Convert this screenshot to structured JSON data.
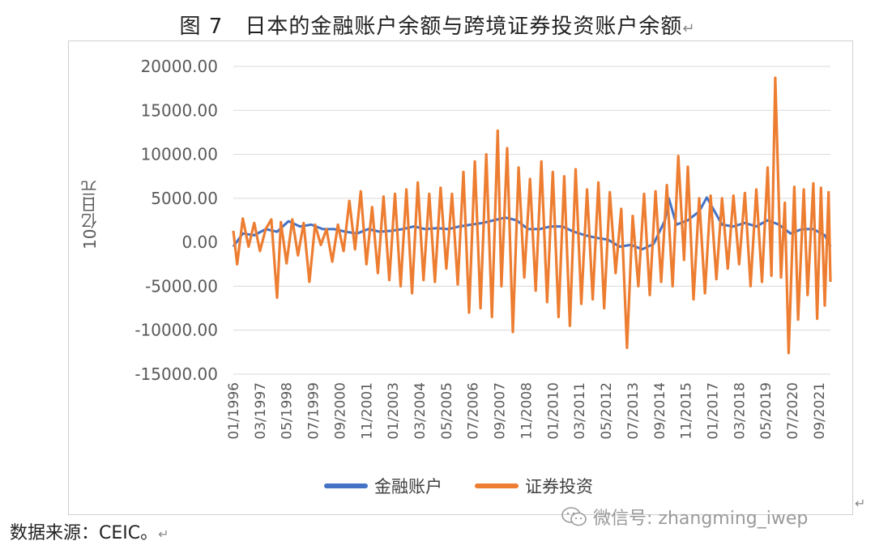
{
  "title": "图 7　日本的金融账户余额与跨境证券投资账户余额",
  "title_mark": "↵",
  "source_text": "数据来源：CEIC。",
  "source_mark": "↵",
  "watermark": "微信号: zhangming_iwep",
  "watermark_icon": "wechat-icon",
  "corner_mark": "↵",
  "colors": {
    "financial": "#4472C4",
    "securities": "#ED7D31",
    "grid": "#d9d9d9",
    "axis_text": "#595959"
  },
  "chart_data": {
    "type": "line",
    "title": "图 7　日本的金融账户余额与跨境证券投资账户余额",
    "ylabel": "10亿日元",
    "xlabel": "",
    "ylim": [
      -15000,
      20000
    ],
    "yticks": [
      20000,
      15000,
      10000,
      5000,
      0,
      -5000,
      -10000,
      -15000
    ],
    "ytick_labels": [
      "20000.00",
      "15000.00",
      "10000.00",
      "5000.00",
      "0.00",
      "-5000.00",
      "-10000.00",
      "-15000.00"
    ],
    "xticks": [
      "01/1996",
      "03/1997",
      "05/1998",
      "07/1999",
      "09/2000",
      "11/2001",
      "01/2003",
      "03/2004",
      "05/2005",
      "07/2006",
      "09/2007",
      "11/2008",
      "01/2010",
      "03/2011",
      "05/2012",
      "07/2013",
      "09/2014",
      "11/2015",
      "01/2017",
      "03/2018",
      "05/2019",
      "07/2020",
      "09/2021"
    ],
    "x_start": "1996-01",
    "x_end": "2022-03",
    "frequency": "monthly",
    "grid": true,
    "legend_position": "bottom",
    "series": [
      {
        "name": "金融账户",
        "color": "#4472C4",
        "anchors": [
          [
            "1996-01",
            -500
          ],
          [
            "1996-06",
            1000
          ],
          [
            "1996-12",
            800
          ],
          [
            "1997-06",
            1500
          ],
          [
            "1997-12",
            1200
          ],
          [
            "1998-06",
            2400
          ],
          [
            "1998-12",
            1800
          ],
          [
            "1999-06",
            2000
          ],
          [
            "1999-12",
            1500
          ],
          [
            "2000-06",
            1500
          ],
          [
            "2000-12",
            1200
          ],
          [
            "2001-06",
            1000
          ],
          [
            "2001-12",
            1500
          ],
          [
            "2002-06",
            1200
          ],
          [
            "2002-12",
            1300
          ],
          [
            "2003-06",
            1500
          ],
          [
            "2003-12",
            1800
          ],
          [
            "2004-06",
            1500
          ],
          [
            "2004-12",
            1600
          ],
          [
            "2005-06",
            1500
          ],
          [
            "2005-12",
            1800
          ],
          [
            "2006-06",
            2000
          ],
          [
            "2006-12",
            2200
          ],
          [
            "2007-06",
            2500
          ],
          [
            "2007-12",
            2800
          ],
          [
            "2008-06",
            2500
          ],
          [
            "2008-12",
            1500
          ],
          [
            "2009-06",
            1500
          ],
          [
            "2009-12",
            1800
          ],
          [
            "2010-06",
            1800
          ],
          [
            "2010-12",
            1200
          ],
          [
            "2011-06",
            800
          ],
          [
            "2011-12",
            500
          ],
          [
            "2012-06",
            300
          ],
          [
            "2012-12",
            -500
          ],
          [
            "2013-06",
            -300
          ],
          [
            "2013-12",
            -800
          ],
          [
            "2014-06",
            -200
          ],
          [
            "2014-12",
            2500
          ],
          [
            "2015-02",
            5000
          ],
          [
            "2015-06",
            2000
          ],
          [
            "2015-12",
            2500
          ],
          [
            "2016-06",
            3500
          ],
          [
            "2016-10",
            5100
          ],
          [
            "2017-06",
            2000
          ],
          [
            "2017-12",
            1800
          ],
          [
            "2018-06",
            2200
          ],
          [
            "2018-12",
            1800
          ],
          [
            "2019-06",
            2500
          ],
          [
            "2019-12",
            2000
          ],
          [
            "2020-06",
            1000
          ],
          [
            "2020-12",
            1500
          ],
          [
            "2021-06",
            1500
          ],
          [
            "2021-12",
            800
          ],
          [
            "2022-03",
            -500
          ]
        ]
      },
      {
        "name": "证券投资",
        "color": "#ED7D31",
        "anchors": [
          [
            "1996-01",
            1300
          ],
          [
            "1996-03",
            -2500
          ],
          [
            "1996-06",
            2700
          ],
          [
            "1996-09",
            -500
          ],
          [
            "1996-12",
            2200
          ],
          [
            "1997-03",
            -1000
          ],
          [
            "1997-06",
            1500
          ],
          [
            "1997-09",
            2600
          ],
          [
            "1997-12",
            -6300
          ],
          [
            "1998-02",
            2300
          ],
          [
            "1998-05",
            -2400
          ],
          [
            "1998-08",
            2600
          ],
          [
            "1998-11",
            -1500
          ],
          [
            "1999-02",
            2200
          ],
          [
            "1999-05",
            -4500
          ],
          [
            "1999-08",
            2000
          ],
          [
            "1999-11",
            -300
          ],
          [
            "2000-02",
            1500
          ],
          [
            "2000-05",
            -2200
          ],
          [
            "2000-08",
            2000
          ],
          [
            "2000-11",
            -1000
          ],
          [
            "2001-02",
            4700
          ],
          [
            "2001-05",
            -800
          ],
          [
            "2001-08",
            5800
          ],
          [
            "2001-11",
            -2500
          ],
          [
            "2002-02",
            4000
          ],
          [
            "2002-05",
            -3500
          ],
          [
            "2002-08",
            5200
          ],
          [
            "2002-11",
            -4300
          ],
          [
            "2003-02",
            5500
          ],
          [
            "2003-05",
            -5000
          ],
          [
            "2003-08",
            6000
          ],
          [
            "2003-11",
            -5800
          ],
          [
            "2004-02",
            6800
          ],
          [
            "2004-05",
            -4300
          ],
          [
            "2004-08",
            5500
          ],
          [
            "2004-11",
            -4500
          ],
          [
            "2005-02",
            6200
          ],
          [
            "2005-05",
            -3000
          ],
          [
            "2005-08",
            5500
          ],
          [
            "2005-11",
            -4800
          ],
          [
            "2006-02",
            8000
          ],
          [
            "2006-05",
            -8000
          ],
          [
            "2006-08",
            9200
          ],
          [
            "2006-11",
            -7500
          ],
          [
            "2007-02",
            10000
          ],
          [
            "2007-05",
            -8500
          ],
          [
            "2007-08",
            12700
          ],
          [
            "2007-10",
            -5000
          ],
          [
            "2008-01",
            10700
          ],
          [
            "2008-04",
            -10200
          ],
          [
            "2008-07",
            8500
          ],
          [
            "2008-10",
            -4000
          ],
          [
            "2009-01",
            7200
          ],
          [
            "2009-04",
            -5500
          ],
          [
            "2009-07",
            9200
          ],
          [
            "2009-10",
            -6800
          ],
          [
            "2010-01",
            8000
          ],
          [
            "2010-04",
            -8500
          ],
          [
            "2010-07",
            7500
          ],
          [
            "2010-10",
            -9500
          ],
          [
            "2011-01",
            8300
          ],
          [
            "2011-04",
            -7000
          ],
          [
            "2011-07",
            6000
          ],
          [
            "2011-10",
            -6500
          ],
          [
            "2012-01",
            6800
          ],
          [
            "2012-04",
            -7500
          ],
          [
            "2012-07",
            5700
          ],
          [
            "2012-10",
            -3500
          ],
          [
            "2013-01",
            3800
          ],
          [
            "2013-04",
            -12000
          ],
          [
            "2013-07",
            3000
          ],
          [
            "2013-10",
            -5000
          ],
          [
            "2014-01",
            5500
          ],
          [
            "2014-04",
            -6000
          ],
          [
            "2014-07",
            5800
          ],
          [
            "2014-10",
            -4500
          ],
          [
            "2015-01",
            6500
          ],
          [
            "2015-04",
            -5000
          ],
          [
            "2015-07",
            9800
          ],
          [
            "2015-10",
            -2000
          ],
          [
            "2015-12",
            8600
          ],
          [
            "2016-03",
            -6500
          ],
          [
            "2016-06",
            5000
          ],
          [
            "2016-09",
            -5800
          ],
          [
            "2016-12",
            5300
          ],
          [
            "2017-03",
            -4200
          ],
          [
            "2017-06",
            5000
          ],
          [
            "2017-09",
            -3000
          ],
          [
            "2017-12",
            5300
          ],
          [
            "2018-03",
            -2500
          ],
          [
            "2018-06",
            5600
          ],
          [
            "2018-09",
            -5000
          ],
          [
            "2018-12",
            6000
          ],
          [
            "2019-03",
            -4500
          ],
          [
            "2019-06",
            8500
          ],
          [
            "2019-08",
            -3800
          ],
          [
            "2019-10",
            18700
          ],
          [
            "2020-01",
            -4000
          ],
          [
            "2020-03",
            4500
          ],
          [
            "2020-05",
            -12600
          ],
          [
            "2020-08",
            6300
          ],
          [
            "2020-10",
            -8800
          ],
          [
            "2021-01",
            6000
          ],
          [
            "2021-03",
            -6000
          ],
          [
            "2021-06",
            6700
          ],
          [
            "2021-08",
            -8700
          ],
          [
            "2021-10",
            6200
          ],
          [
            "2021-12",
            -7200
          ],
          [
            "2022-02",
            5700
          ],
          [
            "2022-03",
            -4500
          ]
        ]
      }
    ]
  }
}
